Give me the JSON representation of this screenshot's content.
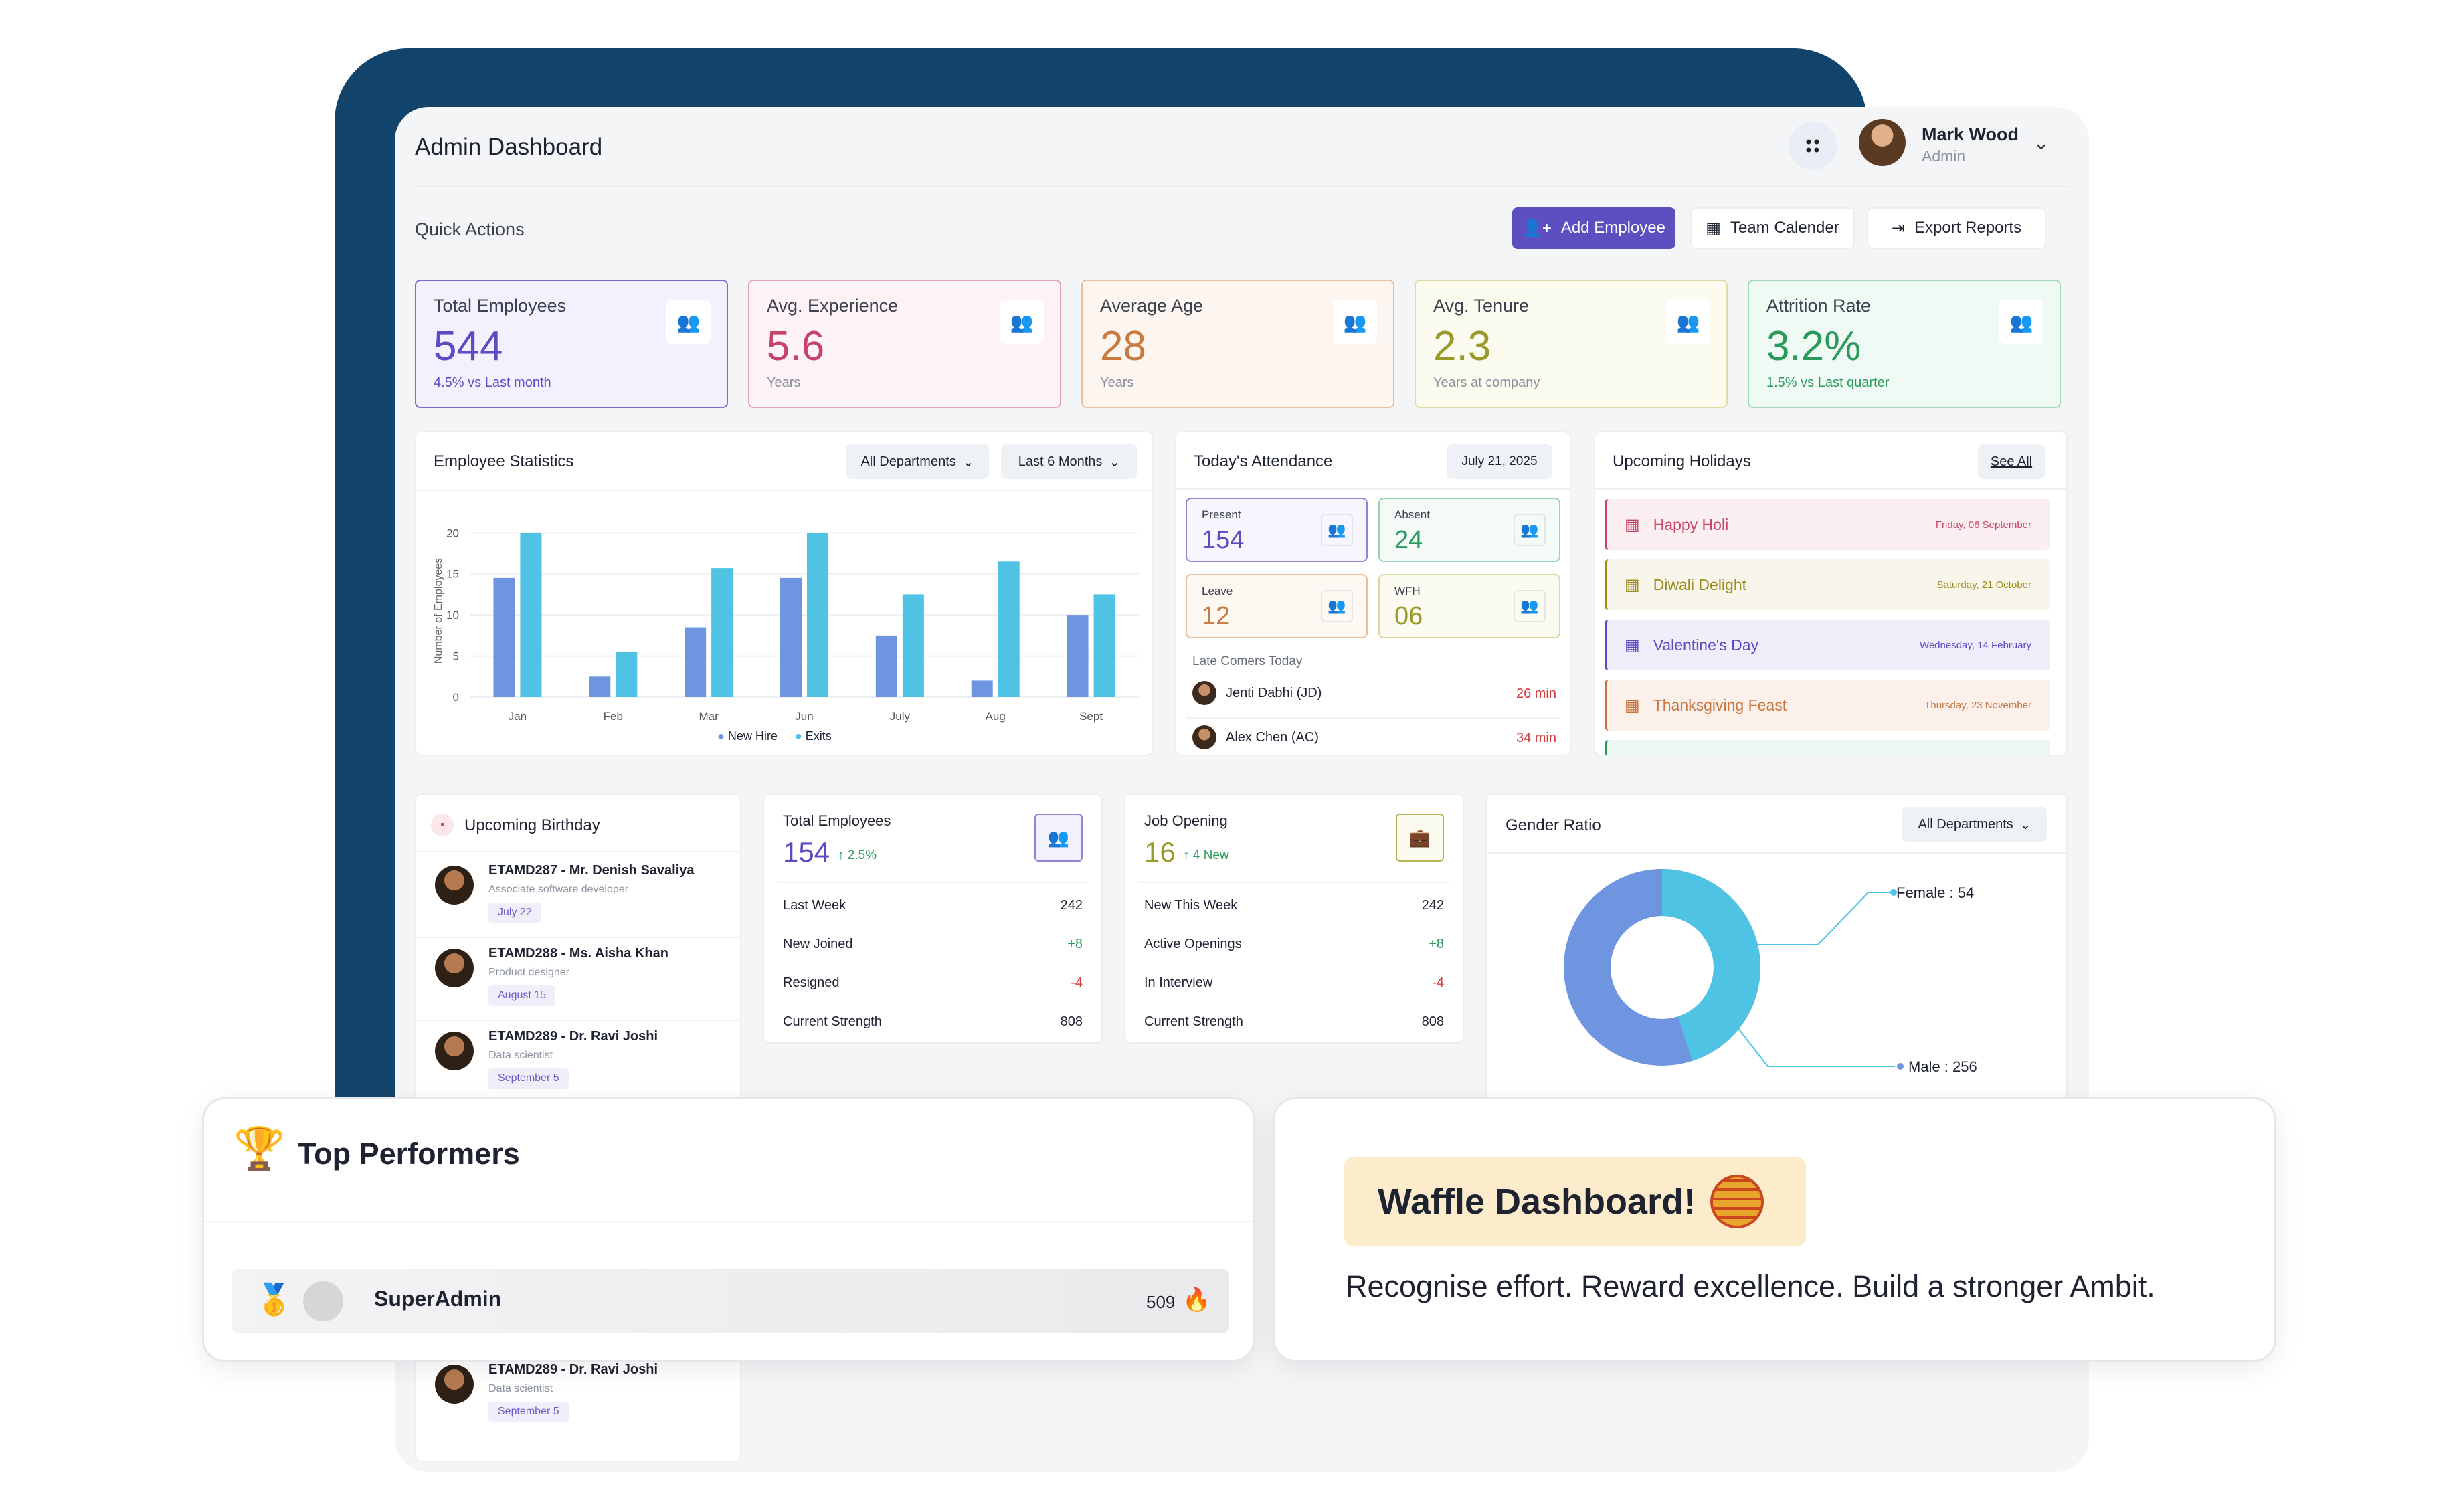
{
  "header": {
    "title": "Admin Dashboard",
    "user_name": "Mark Wood",
    "user_role": "Admin"
  },
  "quick_actions": {
    "label": "Quick Actions",
    "add": "Add Employee",
    "calendar": "Team Calender",
    "export": "Export Reports"
  },
  "stats": [
    {
      "label": "Total Employees",
      "value": "544",
      "sub": "4.5% vs Last month",
      "color": "#5b4cc4"
    },
    {
      "label": "Avg. Experience",
      "value": "5.6",
      "sub": "Years",
      "color": "#c8436a"
    },
    {
      "label": "Average Age",
      "value": "28",
      "sub": "Years",
      "color": "#c87a3f"
    },
    {
      "label": "Avg. Tenure",
      "value": "2.3",
      "sub": "Years at company",
      "color": "#9a9a2a"
    },
    {
      "label": "Attrition Rate",
      "value": "3.2%",
      "sub": "1.5% vs Last quarter",
      "color": "#2a9a5c"
    }
  ],
  "emp_stats": {
    "title": "Employee Statistics",
    "dept": "All Departments",
    "range": "Last 6 Months",
    "ylabel": "Number of Employees",
    "legend_hire": "New Hire",
    "legend_exit": "Exits"
  },
  "chart_data": {
    "type": "bar",
    "categories": [
      "Jan",
      "Feb",
      "Mar",
      "Jun",
      "July",
      "Aug",
      "Sept"
    ],
    "series": [
      {
        "name": "New Hire",
        "values": [
          14.5,
          2.5,
          8.5,
          14.5,
          7.5,
          2,
          10
        ]
      },
      {
        "name": "Exits",
        "values": [
          20,
          5.5,
          15.7,
          20,
          12.5,
          16.5,
          12.5
        ]
      }
    ],
    "ylabel": "Number of Employees",
    "yticks": [
      0,
      5,
      10,
      15,
      20
    ],
    "ylim": [
      0,
      21
    ]
  },
  "attendance": {
    "title": "Today's Attendance",
    "date": "July 21, 2025",
    "present_l": "Present",
    "present_v": "154",
    "absent_l": "Absent",
    "absent_v": "24",
    "leave_l": "Leave",
    "leave_v": "12",
    "wfh_l": "WFH",
    "wfh_v": "06",
    "late_title": "Late Comers Today",
    "late": [
      {
        "name": "Jenti Dabhi (JD)",
        "min": "26 min"
      },
      {
        "name": "Alex Chen (AC)",
        "min": "34 min"
      }
    ]
  },
  "holidays": {
    "title": "Upcoming Holidays",
    "see_all": "See All",
    "items": [
      {
        "name": "Happy Holi",
        "date": "Friday, 06 September",
        "color": "#c8436a",
        "bg": "#fbeef1"
      },
      {
        "name": "Diwali Delight",
        "date": "Saturday, 21 October",
        "color": "#9a8a1e",
        "bg": "#f8f6ea"
      },
      {
        "name": "Valentine's Day",
        "date": "Wednesday, 14 February",
        "color": "#5b4cc4",
        "bg": "#eeedf9"
      },
      {
        "name": "Thanksgiving Feast",
        "date": "Thursday, 23 November",
        "color": "#c8743f",
        "bg": "#fbf1ea"
      }
    ]
  },
  "birthday": {
    "title": "Upcoming Birthday",
    "items": [
      {
        "name": "ETAMD287 - Mr. Denish Savaliya",
        "role": "Associate software developer",
        "date": "July 22"
      },
      {
        "name": "ETAMD288 - Ms. Aisha Khan",
        "role": "Product designer",
        "date": "August 15"
      },
      {
        "name": "ETAMD289 - Dr. Ravi Joshi",
        "role": "Data scientist",
        "date": "September 5"
      }
    ],
    "extra": {
      "name": "ETAMD289 - Dr. Ravi Joshi",
      "role": "Data scientist",
      "date": "September 5"
    }
  },
  "total_emp": {
    "title": "Total Employees",
    "value": "154",
    "delta": "↑ 2.5%",
    "rows": [
      {
        "l": "Last Week",
        "v": "242"
      },
      {
        "l": "New Joined",
        "v": "+8"
      },
      {
        "l": "Resigned",
        "v": "-4"
      },
      {
        "l": "Current Strength",
        "v": "808"
      }
    ]
  },
  "job": {
    "title": "Job Opening",
    "value": "16",
    "delta": "↑ 4 New",
    "rows": [
      {
        "l": "New This Week",
        "v": "242"
      },
      {
        "l": "Active Openings",
        "v": "+8"
      },
      {
        "l": "In Interview",
        "v": "-4"
      },
      {
        "l": "Current Strength",
        "v": "808"
      }
    ]
  },
  "gender": {
    "title": "Gender Ratio",
    "dept": "All Departments",
    "female": "Female : 54",
    "male": "Male : 256",
    "female_value": 54,
    "male_value": 256
  },
  "top": {
    "title": "Top Performers",
    "name": "SuperAdmin",
    "score": "509"
  },
  "waffle": {
    "badge": "Waffle Dashboard!",
    "tagline": "Recognise effort. Reward excellence. Build a stronger Ambit."
  }
}
